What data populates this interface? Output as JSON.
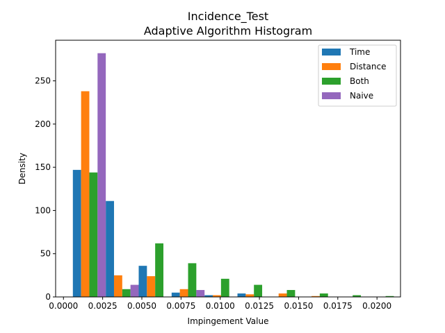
{
  "chart_data": {
    "type": "bar",
    "title": "Incidence_Test",
    "subtitle": "Adaptive Algorithm Histogram",
    "xlabel": "Impingement Value",
    "ylabel": "Density",
    "xlim": [
      -0.0005,
      0.0215
    ],
    "ylim": [
      0,
      297
    ],
    "bin_width": 0.0021,
    "bin_starts": [
      0.0006,
      0.0027,
      0.0048,
      0.0069,
      0.009,
      0.0111,
      0.0132,
      0.0153,
      0.0174,
      0.0195
    ],
    "xticks": [
      0.0,
      0.0025,
      0.005,
      0.0075,
      0.01,
      0.0125,
      0.015,
      0.0175,
      0.02
    ],
    "xtick_labels": [
      "0.0000",
      "0.0025",
      "0.0050",
      "0.0075",
      "0.0100",
      "0.0125",
      "0.0150",
      "0.0175",
      "0.0200"
    ],
    "yticks": [
      0,
      50,
      100,
      150,
      200,
      250
    ],
    "ytick_labels": [
      "0",
      "50",
      "100",
      "150",
      "200",
      "250"
    ],
    "series": [
      {
        "name": "Time",
        "color": "#1f77b4",
        "values": [
          147,
          111,
          36,
          5,
          2,
          4,
          0,
          0,
          0,
          0
        ]
      },
      {
        "name": "Distance",
        "color": "#ff7f0e",
        "values": [
          238,
          25,
          24,
          9,
          2,
          3,
          4,
          1,
          0,
          0
        ]
      },
      {
        "name": "Both",
        "color": "#2ca02c",
        "values": [
          144,
          9,
          62,
          39,
          21,
          14,
          8,
          4,
          2,
          1
        ]
      },
      {
        "name": "Naive",
        "color": "#9467bd",
        "values": [
          282,
          14,
          0,
          8,
          0,
          0,
          0,
          0,
          0,
          0
        ]
      }
    ],
    "legend_position": "top-right"
  }
}
